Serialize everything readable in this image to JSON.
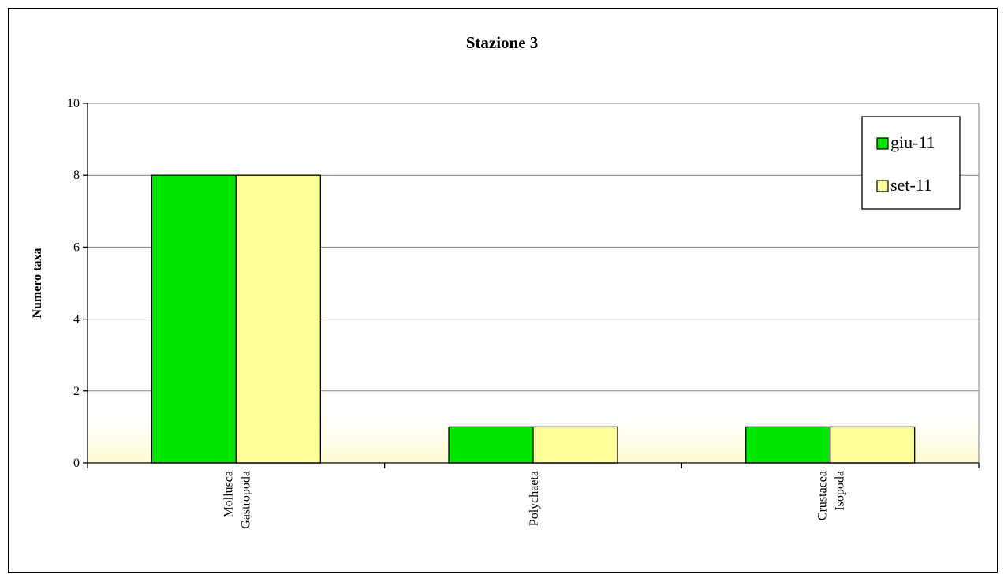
{
  "chart_data": {
    "type": "bar",
    "title": "Stazione 3",
    "xlabel": "",
    "ylabel": "Numero taxa",
    "ylim": [
      0,
      10
    ],
    "yticks": [
      0,
      2,
      4,
      6,
      8,
      10
    ],
    "grid": true,
    "legend_position": "top-right",
    "categories": [
      [
        "Mollusca",
        "Gastropoda"
      ],
      [
        "Polychaeta"
      ],
      [
        "Crustacea",
        "Isopoda"
      ]
    ],
    "series": [
      {
        "name": "giu-11",
        "color": "#00e600",
        "values": [
          8,
          1,
          1
        ]
      },
      {
        "name": "set-11",
        "color": "#ffff99",
        "values": [
          8,
          1,
          1
        ]
      }
    ]
  }
}
